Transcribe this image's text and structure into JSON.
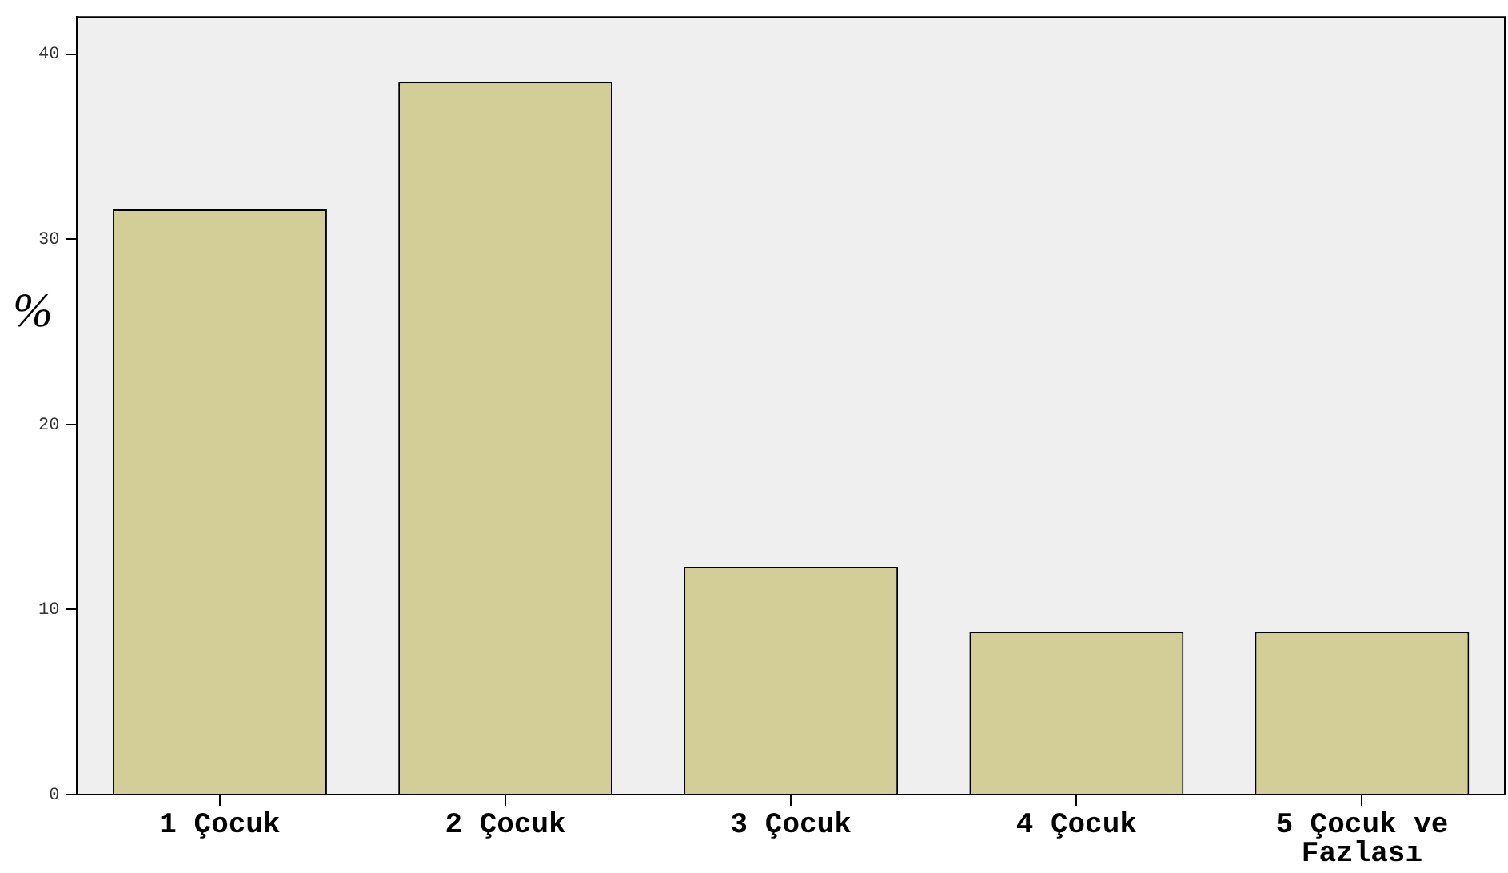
{
  "chart_data": {
    "type": "bar",
    "ylabel": "%",
    "categories": [
      "1 Çocuk",
      "2 Çocuk",
      "3 Çocuk",
      "4 Çocuk",
      "5 Çocuk ve Fazlası"
    ],
    "values": [
      31.6,
      38.5,
      12.3,
      8.8,
      8.8
    ],
    "color": "#d3ce98",
    "ylim": [
      0,
      42
    ],
    "yticks": [
      0,
      10,
      20,
      30,
      40
    ],
    "grid": false,
    "legend": false
  }
}
